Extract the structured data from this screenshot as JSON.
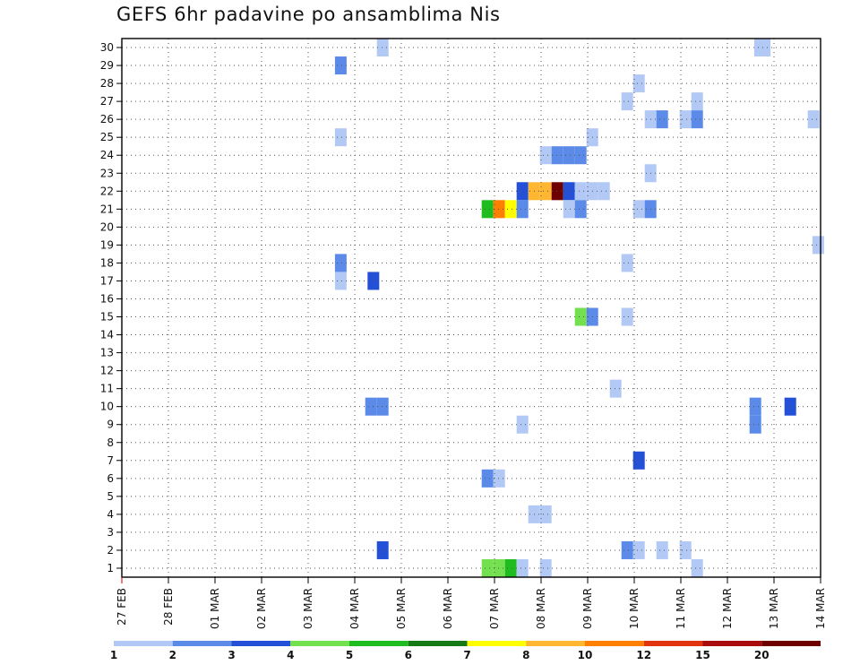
{
  "chart_data": {
    "type": "heatmap",
    "title": "GEFS 6hr padavine po ansamblima Nis",
    "xlabel": "",
    "ylabel": "",
    "x_tick_labels": [
      "27 FEB",
      "28 FEB",
      "01 MAR",
      "02 MAR",
      "03 MAR",
      "04 MAR",
      "05 MAR",
      "06 MAR",
      "07 MAR",
      "08 MAR",
      "09 MAR",
      "10 MAR",
      "11 MAR",
      "12 MAR",
      "13 MAR",
      "14 MAR"
    ],
    "x_range_days": [
      0,
      15
    ],
    "y_tick_labels": [
      "1",
      "2",
      "3",
      "4",
      "5",
      "6",
      "7",
      "8",
      "9",
      "10",
      "11",
      "12",
      "13",
      "14",
      "15",
      "16",
      "17",
      "18",
      "19",
      "20",
      "21",
      "22",
      "23",
      "24",
      "25",
      "26",
      "27",
      "28",
      "29",
      "30"
    ],
    "y_range": [
      0.5,
      30.5
    ],
    "grid": true,
    "color_scale": {
      "colors": [
        "#b3c9f5",
        "#5b8ae8",
        "#2450d8",
        "#72e04f",
        "#1fbc1f",
        "#157a15",
        "#ffff00",
        "#ffb732",
        "#ff7f00",
        "#e1330d",
        "#a80c0c",
        "#6e0000"
      ],
      "labels": [
        "1",
        "2",
        "3",
        "4",
        "5",
        "6",
        "7",
        "8",
        "10",
        "12",
        "15",
        "20"
      ]
    },
    "cells": [
      {
        "member": 30,
        "t": 5.6,
        "c": 0
      },
      {
        "member": 30,
        "t": 13.7,
        "c": 0
      },
      {
        "member": 30,
        "t": 13.8,
        "c": 0
      },
      {
        "member": 29,
        "t": 4.7,
        "c": 1
      },
      {
        "member": 28,
        "t": 11.1,
        "c": 0
      },
      {
        "member": 27,
        "t": 10.85,
        "c": 0
      },
      {
        "member": 27,
        "t": 12.35,
        "c": 0
      },
      {
        "member": 26,
        "t": 11.35,
        "c": 0
      },
      {
        "member": 26,
        "t": 11.6,
        "c": 1
      },
      {
        "member": 26,
        "t": 12.1,
        "c": 0
      },
      {
        "member": 26,
        "t": 12.35,
        "c": 1
      },
      {
        "member": 26,
        "t": 14.85,
        "c": 0
      },
      {
        "member": 25,
        "t": 4.7,
        "c": 0
      },
      {
        "member": 25,
        "t": 10.1,
        "c": 0
      },
      {
        "member": 24,
        "t": 9.1,
        "c": 0
      },
      {
        "member": 24,
        "t": 9.35,
        "c": 1
      },
      {
        "member": 24,
        "t": 9.6,
        "c": 1
      },
      {
        "member": 24,
        "t": 9.85,
        "c": 1
      },
      {
        "member": 23,
        "t": 11.35,
        "c": 0
      },
      {
        "member": 22,
        "t": 8.6,
        "c": 2
      },
      {
        "member": 22,
        "t": 8.85,
        "c": 7
      },
      {
        "member": 22,
        "t": 9.1,
        "c": 7
      },
      {
        "member": 22,
        "t": 9.35,
        "c": 11
      },
      {
        "member": 22,
        "t": 9.6,
        "c": 2
      },
      {
        "member": 22,
        "t": 9.85,
        "c": 0
      },
      {
        "member": 22,
        "t": 10.1,
        "c": 0
      },
      {
        "member": 22,
        "t": 10.35,
        "c": 0
      },
      {
        "member": 21,
        "t": 7.85,
        "c": 4
      },
      {
        "member": 21,
        "t": 8.1,
        "c": 8
      },
      {
        "member": 21,
        "t": 8.35,
        "c": 6
      },
      {
        "member": 21,
        "t": 8.6,
        "c": 1
      },
      {
        "member": 21,
        "t": 9.6,
        "c": 0
      },
      {
        "member": 21,
        "t": 9.85,
        "c": 1
      },
      {
        "member": 21,
        "t": 11.1,
        "c": 0
      },
      {
        "member": 21,
        "t": 11.35,
        "c": 1
      },
      {
        "member": 19,
        "t": 14.95,
        "c": 0
      },
      {
        "member": 18,
        "t": 4.7,
        "c": 1
      },
      {
        "member": 18,
        "t": 10.85,
        "c": 0
      },
      {
        "member": 17,
        "t": 4.7,
        "c": 0
      },
      {
        "member": 17,
        "t": 5.4,
        "c": 2
      },
      {
        "member": 15,
        "t": 9.85,
        "c": 3
      },
      {
        "member": 15,
        "t": 10.1,
        "c": 1
      },
      {
        "member": 15,
        "t": 10.85,
        "c": 0
      },
      {
        "member": 11,
        "t": 10.6,
        "c": 0
      },
      {
        "member": 10,
        "t": 5.35,
        "c": 1
      },
      {
        "member": 10,
        "t": 5.6,
        "c": 1
      },
      {
        "member": 10,
        "t": 13.6,
        "c": 1
      },
      {
        "member": 10,
        "t": 14.35,
        "c": 2
      },
      {
        "member": 9,
        "t": 8.6,
        "c": 0
      },
      {
        "member": 9,
        "t": 13.6,
        "c": 1
      },
      {
        "member": 7,
        "t": 11.1,
        "c": 2
      },
      {
        "member": 6,
        "t": 7.85,
        "c": 1
      },
      {
        "member": 6,
        "t": 8.1,
        "c": 0
      },
      {
        "member": 4,
        "t": 8.85,
        "c": 0
      },
      {
        "member": 4,
        "t": 9.1,
        "c": 0
      },
      {
        "member": 2,
        "t": 5.6,
        "c": 2
      },
      {
        "member": 2,
        "t": 10.85,
        "c": 1
      },
      {
        "member": 2,
        "t": 11.1,
        "c": 0
      },
      {
        "member": 2,
        "t": 11.6,
        "c": 0
      },
      {
        "member": 2,
        "t": 12.1,
        "c": 0
      },
      {
        "member": 1,
        "t": 7.85,
        "c": 3
      },
      {
        "member": 1,
        "t": 8.1,
        "c": 3
      },
      {
        "member": 1,
        "t": 8.35,
        "c": 4
      },
      {
        "member": 1,
        "t": 8.6,
        "c": 0
      },
      {
        "member": 1,
        "t": 9.1,
        "c": 0
      },
      {
        "member": 1,
        "t": 12.35,
        "c": 0
      }
    ]
  }
}
